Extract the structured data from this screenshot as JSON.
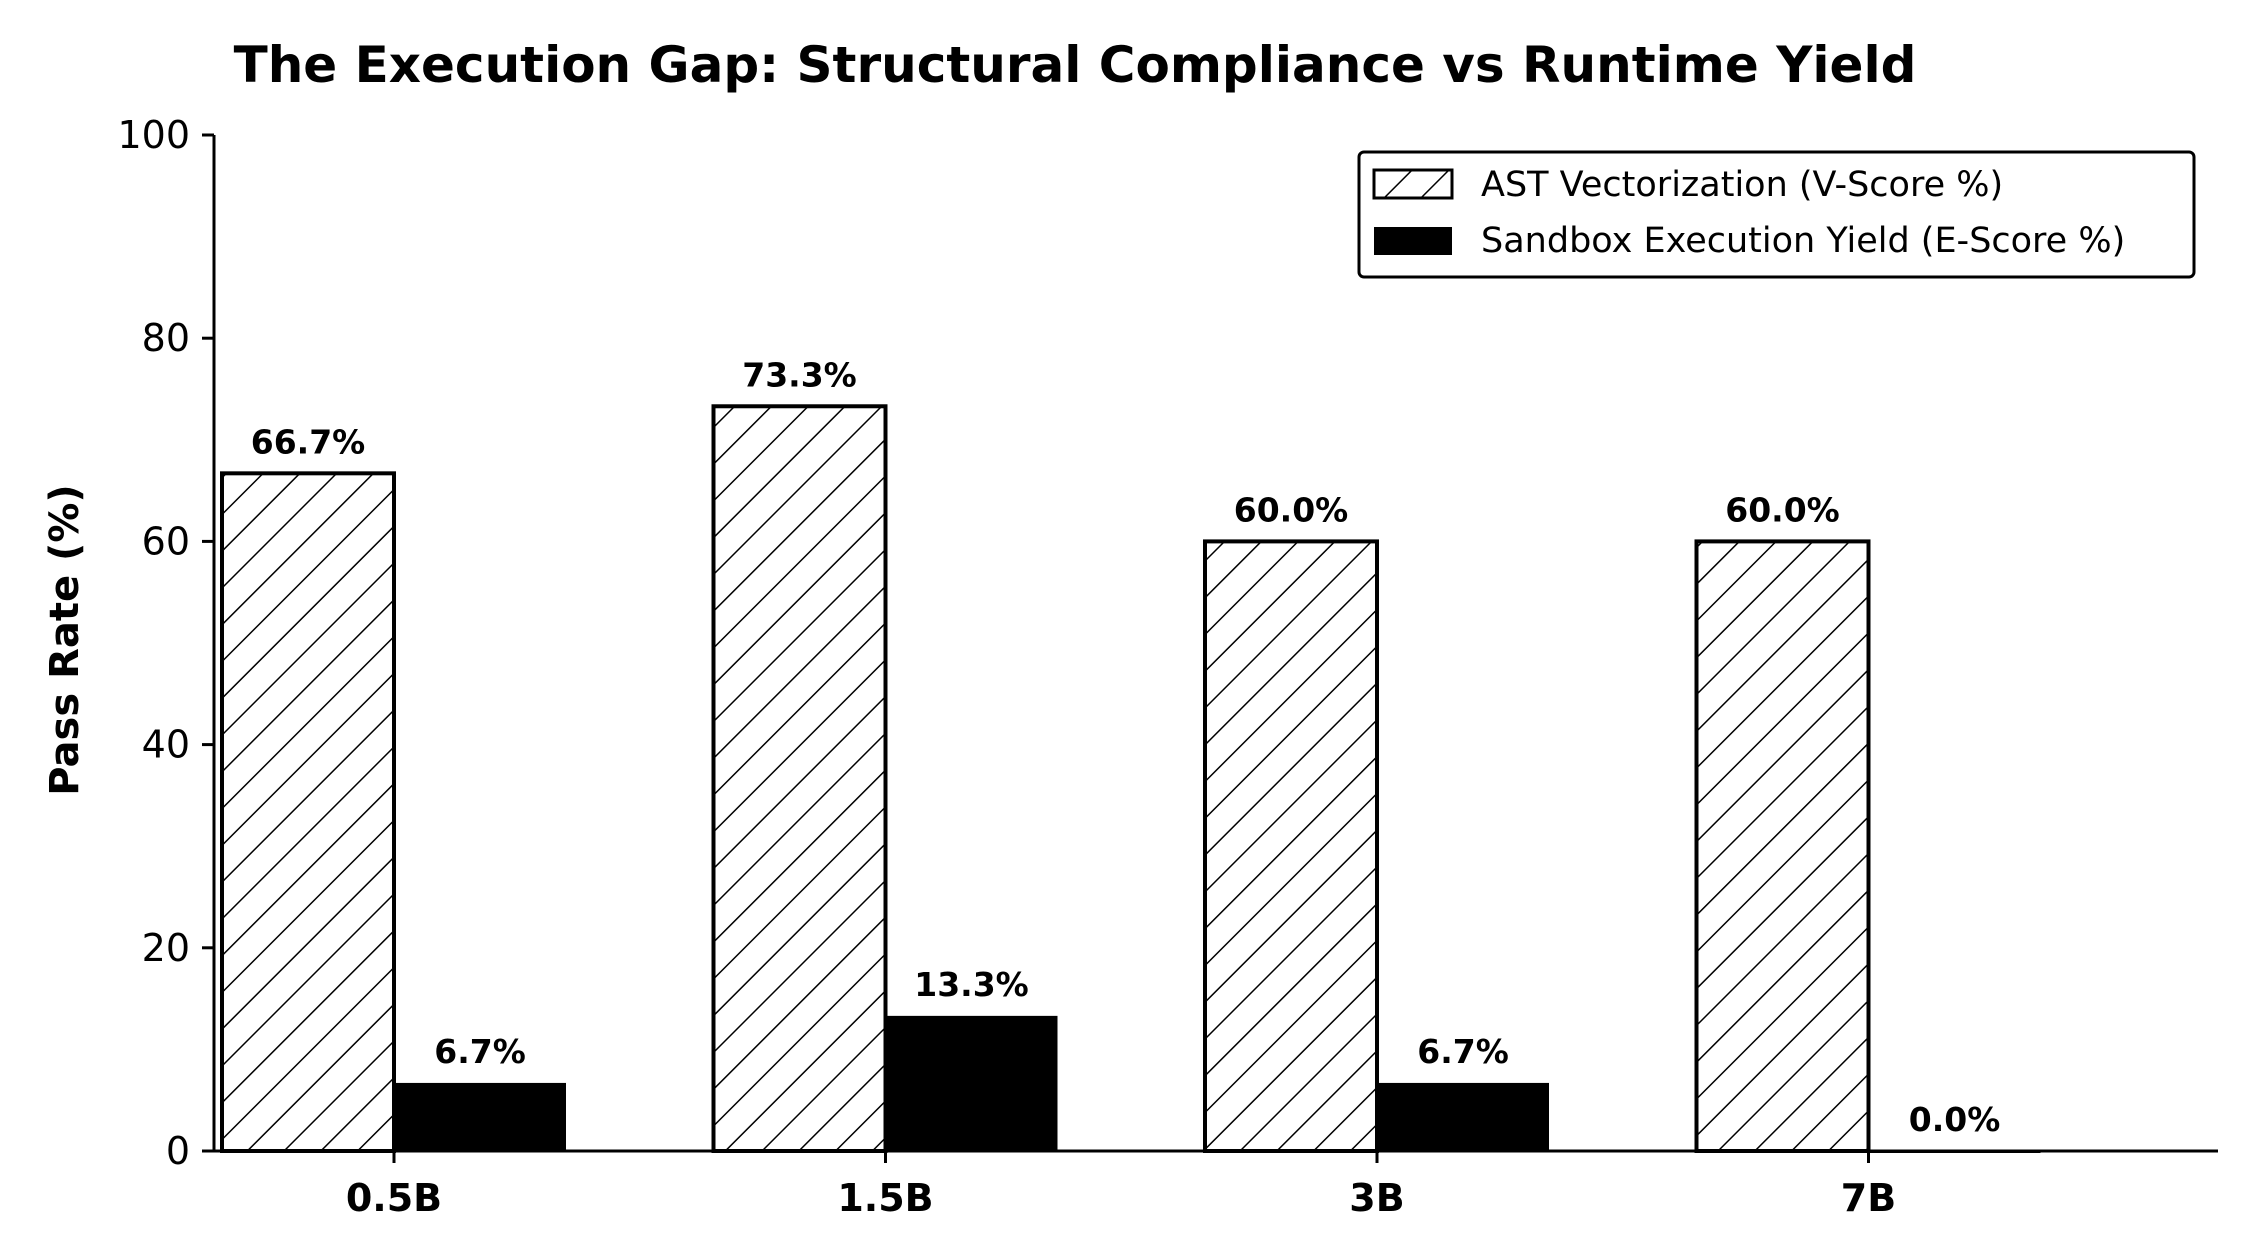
{
  "chart_data": {
    "type": "bar",
    "title": "The Execution Gap: Structural Compliance vs Runtime Yield",
    "xlabel": "",
    "ylabel": "Pass Rate (%)",
    "ylim": [
      0,
      100
    ],
    "yticks": [
      "0",
      "20",
      "40",
      "60",
      "80",
      "100"
    ],
    "categories": [
      "0.5B",
      "1.5B",
      "3B",
      "7B"
    ],
    "series": [
      {
        "name": "AST Vectorization (V-Score %)",
        "style": "hatched",
        "values": [
          66.7,
          73.3,
          60.0,
          60.0
        ],
        "labels": [
          "66.7%",
          "73.3%",
          "60.0%",
          "60.0%"
        ]
      },
      {
        "name": "Sandbox Execution Yield (E-Score %)",
        "style": "solid",
        "values": [
          6.7,
          13.3,
          6.7,
          0.0
        ],
        "labels": [
          "6.7%",
          "13.3%",
          "6.7%",
          "0.0%"
        ]
      }
    ],
    "grid": false,
    "legend_position": "top-right",
    "colors": {
      "bar": "#000000",
      "hatch_fill": "#ffffff",
      "edge": "#000000"
    }
  }
}
